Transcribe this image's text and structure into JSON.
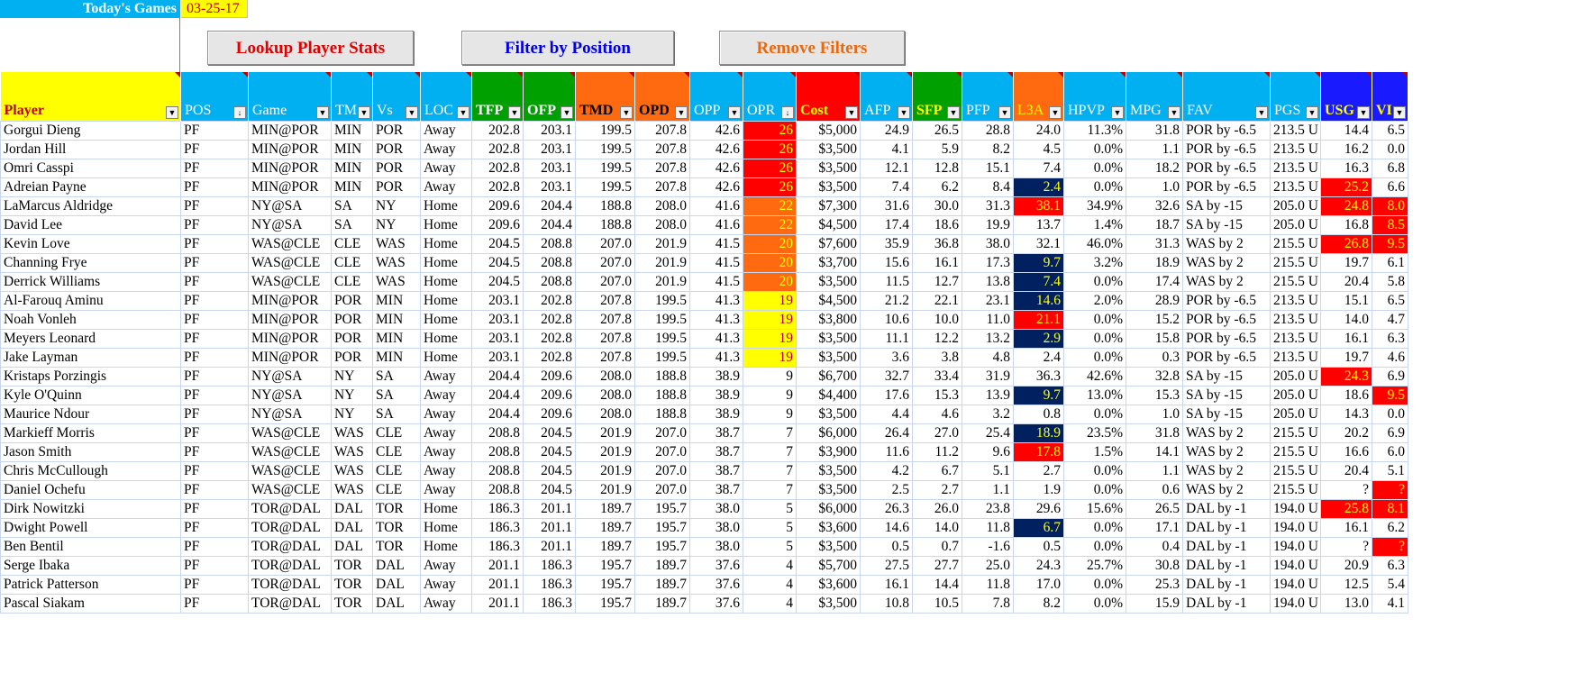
{
  "header": {
    "title": "Today's Games",
    "date": "03-25-17"
  },
  "buttons": [
    {
      "label": "Lookup Player Stats",
      "color": "#e00000"
    },
    {
      "label": "Filter by Position",
      "color": "#0000e0"
    },
    {
      "label": "Remove Filters",
      "color": "#e86a10"
    }
  ],
  "colors": {
    "orange": "#ff6a10",
    "yellow": "#ffff00",
    "navy": "#002060",
    "red": "#ff0000",
    "header_blue": "#00b0f0",
    "header_green": "#00a000"
  },
  "columns": [
    {
      "key": "player",
      "label": "Player",
      "bg": "#ffff00",
      "fg": "#c00000",
      "bold": true,
      "filter": "dropdown"
    },
    {
      "key": "pos",
      "label": "POS",
      "bg": "#00b0f0",
      "fg": "#ffffff",
      "filter": "sorted"
    },
    {
      "key": "game",
      "label": "Game",
      "bg": "#00b0f0",
      "fg": "#ffffff",
      "filter": "dropdown"
    },
    {
      "key": "tm",
      "label": "TM",
      "bg": "#00b0f0",
      "fg": "#ffffff",
      "filter": "dropdown"
    },
    {
      "key": "vs",
      "label": "Vs",
      "bg": "#00b0f0",
      "fg": "#ffffff",
      "filter": "dropdown"
    },
    {
      "key": "loc",
      "label": "LOC",
      "bg": "#00b0f0",
      "fg": "#ffffff",
      "filter": "dropdown"
    },
    {
      "key": "tfp",
      "label": "TFP",
      "bg": "#00a000",
      "fg": "#ffffff",
      "bold": true,
      "filter": "dropdown"
    },
    {
      "key": "ofp",
      "label": "OFP",
      "bg": "#00a000",
      "fg": "#ffffff",
      "bold": true,
      "filter": "dropdown"
    },
    {
      "key": "tmd",
      "label": "TMD",
      "bg": "#ff6a10",
      "fg": "#000000",
      "bold": true,
      "filter": "dropdown"
    },
    {
      "key": "opd",
      "label": "OPD",
      "bg": "#ff6a10",
      "fg": "#000000",
      "bold": true,
      "filter": "dropdown"
    },
    {
      "key": "opp",
      "label": "OPP",
      "bg": "#00b0f0",
      "fg": "#ffffff",
      "filter": "dropdown"
    },
    {
      "key": "opr",
      "label": "OPR",
      "bg": "#00b0f0",
      "fg": "#ffffff",
      "filter": "sorted"
    },
    {
      "key": "cost",
      "label": "Cost",
      "bg": "#ff0000",
      "fg": "#ffff00",
      "bold": true,
      "filter": "dropdown"
    },
    {
      "key": "afp",
      "label": "AFP",
      "bg": "#00b0f0",
      "fg": "#ffffff",
      "filter": "dropdown"
    },
    {
      "key": "sfp",
      "label": "SFP",
      "bg": "#00a000",
      "fg": "#ffff00",
      "bold": true,
      "filter": "dropdown"
    },
    {
      "key": "pfp",
      "label": "PFP",
      "bg": "#00b0f0",
      "fg": "#ffffff",
      "filter": "dropdown"
    },
    {
      "key": "l3a",
      "label": "L3A",
      "bg": "#ff6a10",
      "fg": "#ffff00",
      "filter": "dropdown"
    },
    {
      "key": "hpvp",
      "label": "HPVP",
      "bg": "#00b0f0",
      "fg": "#ffffff",
      "filter": "dropdown"
    },
    {
      "key": "mpg",
      "label": "MPG",
      "bg": "#00b0f0",
      "fg": "#ffffff",
      "filter": "dropdown"
    },
    {
      "key": "fav",
      "label": "FAV",
      "bg": "#00b0f0",
      "fg": "#ffffff",
      "filter": "dropdown"
    },
    {
      "key": "pgs",
      "label": "PGS",
      "bg": "#00b0f0",
      "fg": "#ffffff",
      "filter": "dropdown"
    },
    {
      "key": "usg",
      "label": "USG",
      "bg": "#1a1aff",
      "fg": "#ffff00",
      "bold": true,
      "filter": "dropdown"
    },
    {
      "key": "vi",
      "label": "VI",
      "bg": "#1a1aff",
      "fg": "#ffff00",
      "bold": true,
      "filter": "dropdown"
    }
  ],
  "rows": [
    [
      "Gorgui Dieng",
      "PF",
      "MIN@POR",
      "MIN",
      "POR",
      "Away",
      "202.8",
      "203.1",
      "199.5",
      "207.8",
      "42.6",
      "26",
      "$5,000",
      "24.9",
      "26.5",
      "28.8",
      "24.0",
      "11.3%",
      "31.8",
      "POR by -6.5",
      "213.5 U",
      "14.4",
      "6.5"
    ],
    [
      "Jordan Hill",
      "PF",
      "MIN@POR",
      "MIN",
      "POR",
      "Away",
      "202.8",
      "203.1",
      "199.5",
      "207.8",
      "42.6",
      "26",
      "$3,500",
      "4.1",
      "5.9",
      "8.2",
      "4.5",
      "0.0%",
      "1.1",
      "POR by -6.5",
      "213.5 U",
      "16.2",
      "0.0"
    ],
    [
      "Omri Casspi",
      "PF",
      "MIN@POR",
      "MIN",
      "POR",
      "Away",
      "202.8",
      "203.1",
      "199.5",
      "207.8",
      "42.6",
      "26",
      "$3,500",
      "12.1",
      "12.8",
      "15.1",
      "7.4",
      "0.0%",
      "18.2",
      "POR by -6.5",
      "213.5 U",
      "16.3",
      "6.8"
    ],
    [
      "Adreian Payne",
      "PF",
      "MIN@POR",
      "MIN",
      "POR",
      "Away",
      "202.8",
      "203.1",
      "199.5",
      "207.8",
      "42.6",
      "26",
      "$3,500",
      "7.4",
      "6.2",
      "8.4",
      "2.4",
      "0.0%",
      "1.0",
      "POR by -6.5",
      "213.5 U",
      "25.2",
      "6.6"
    ],
    [
      "LaMarcus Aldridge",
      "PF",
      "NY@SA",
      "SA",
      "NY",
      "Home",
      "209.6",
      "204.4",
      "188.8",
      "208.0",
      "41.6",
      "22",
      "$7,300",
      "31.6",
      "30.0",
      "31.3",
      "38.1",
      "34.9%",
      "32.6",
      "SA by -15",
      "205.0 U",
      "24.8",
      "8.0"
    ],
    [
      "David Lee",
      "PF",
      "NY@SA",
      "SA",
      "NY",
      "Home",
      "209.6",
      "204.4",
      "188.8",
      "208.0",
      "41.6",
      "22",
      "$4,500",
      "17.4",
      "18.6",
      "19.9",
      "13.7",
      "1.4%",
      "18.7",
      "SA by -15",
      "205.0 U",
      "16.8",
      "8.5"
    ],
    [
      "Kevin Love",
      "PF",
      "WAS@CLE",
      "CLE",
      "WAS",
      "Home",
      "204.5",
      "208.8",
      "207.0",
      "201.9",
      "41.5",
      "20",
      "$7,600",
      "35.9",
      "36.8",
      "38.0",
      "32.1",
      "46.0%",
      "31.3",
      "WAS by 2",
      "215.5 U",
      "26.8",
      "9.5"
    ],
    [
      "Channing Frye",
      "PF",
      "WAS@CLE",
      "CLE",
      "WAS",
      "Home",
      "204.5",
      "208.8",
      "207.0",
      "201.9",
      "41.5",
      "20",
      "$3,700",
      "15.6",
      "16.1",
      "17.3",
      "9.7",
      "3.2%",
      "18.9",
      "WAS by 2",
      "215.5 U",
      "19.7",
      "6.1"
    ],
    [
      "Derrick Williams",
      "PF",
      "WAS@CLE",
      "CLE",
      "WAS",
      "Home",
      "204.5",
      "208.8",
      "207.0",
      "201.9",
      "41.5",
      "20",
      "$3,500",
      "11.5",
      "12.7",
      "13.8",
      "7.4",
      "0.0%",
      "17.4",
      "WAS by 2",
      "215.5 U",
      "20.4",
      "5.8"
    ],
    [
      "Al-Farouq Aminu",
      "PF",
      "MIN@POR",
      "POR",
      "MIN",
      "Home",
      "203.1",
      "202.8",
      "207.8",
      "199.5",
      "41.3",
      "19",
      "$4,500",
      "21.2",
      "22.1",
      "23.1",
      "14.6",
      "2.0%",
      "28.9",
      "POR by -6.5",
      "213.5 U",
      "15.1",
      "6.5"
    ],
    [
      "Noah Vonleh",
      "PF",
      "MIN@POR",
      "POR",
      "MIN",
      "Home",
      "203.1",
      "202.8",
      "207.8",
      "199.5",
      "41.3",
      "19",
      "$3,800",
      "10.6",
      "10.0",
      "11.0",
      "21.1",
      "0.0%",
      "15.2",
      "POR by -6.5",
      "213.5 U",
      "14.0",
      "4.7"
    ],
    [
      "Meyers Leonard",
      "PF",
      "MIN@POR",
      "POR",
      "MIN",
      "Home",
      "203.1",
      "202.8",
      "207.8",
      "199.5",
      "41.3",
      "19",
      "$3,500",
      "11.1",
      "12.2",
      "13.2",
      "2.9",
      "0.0%",
      "15.8",
      "POR by -6.5",
      "213.5 U",
      "16.1",
      "6.3"
    ],
    [
      "Jake Layman",
      "PF",
      "MIN@POR",
      "POR",
      "MIN",
      "Home",
      "203.1",
      "202.8",
      "207.8",
      "199.5",
      "41.3",
      "19",
      "$3,500",
      "3.6",
      "3.8",
      "4.8",
      "2.4",
      "0.0%",
      "0.3",
      "POR by -6.5",
      "213.5 U",
      "19.7",
      "4.6"
    ],
    [
      "Kristaps Porzingis",
      "PF",
      "NY@SA",
      "NY",
      "SA",
      "Away",
      "204.4",
      "209.6",
      "208.0",
      "188.8",
      "38.9",
      "9",
      "$6,700",
      "32.7",
      "33.4",
      "31.9",
      "36.3",
      "42.6%",
      "32.8",
      "SA by -15",
      "205.0 U",
      "24.3",
      "6.9"
    ],
    [
      "Kyle O'Quinn",
      "PF",
      "NY@SA",
      "NY",
      "SA",
      "Away",
      "204.4",
      "209.6",
      "208.0",
      "188.8",
      "38.9",
      "9",
      "$4,400",
      "17.6",
      "15.3",
      "13.9",
      "9.7",
      "13.0%",
      "15.3",
      "SA by -15",
      "205.0 U",
      "18.6",
      "9.5"
    ],
    [
      "Maurice Ndour",
      "PF",
      "NY@SA",
      "NY",
      "SA",
      "Away",
      "204.4",
      "209.6",
      "208.0",
      "188.8",
      "38.9",
      "9",
      "$3,500",
      "4.4",
      "4.6",
      "3.2",
      "0.8",
      "0.0%",
      "1.0",
      "SA by -15",
      "205.0 U",
      "14.3",
      "0.0"
    ],
    [
      "Markieff Morris",
      "PF",
      "WAS@CLE",
      "WAS",
      "CLE",
      "Away",
      "208.8",
      "204.5",
      "201.9",
      "207.0",
      "38.7",
      "7",
      "$6,000",
      "26.4",
      "27.0",
      "25.4",
      "18.9",
      "23.5%",
      "31.8",
      "WAS by 2",
      "215.5 U",
      "20.2",
      "6.9"
    ],
    [
      "Jason Smith",
      "PF",
      "WAS@CLE",
      "WAS",
      "CLE",
      "Away",
      "208.8",
      "204.5",
      "201.9",
      "207.0",
      "38.7",
      "7",
      "$3,900",
      "11.6",
      "11.2",
      "9.6",
      "17.8",
      "1.5%",
      "14.1",
      "WAS by 2",
      "215.5 U",
      "16.6",
      "6.0"
    ],
    [
      "Chris McCullough",
      "PF",
      "WAS@CLE",
      "WAS",
      "CLE",
      "Away",
      "208.8",
      "204.5",
      "201.9",
      "207.0",
      "38.7",
      "7",
      "$3,500",
      "4.2",
      "6.7",
      "5.1",
      "2.7",
      "0.0%",
      "1.1",
      "WAS by 2",
      "215.5 U",
      "20.4",
      "5.1"
    ],
    [
      "Daniel Ochefu",
      "PF",
      "WAS@CLE",
      "WAS",
      "CLE",
      "Away",
      "208.8",
      "204.5",
      "201.9",
      "207.0",
      "38.7",
      "7",
      "$3,500",
      "2.5",
      "2.7",
      "1.1",
      "1.9",
      "0.0%",
      "0.6",
      "WAS by 2",
      "215.5 U",
      "?",
      "?"
    ],
    [
      "Dirk Nowitzki",
      "PF",
      "TOR@DAL",
      "DAL",
      "TOR",
      "Home",
      "186.3",
      "201.1",
      "189.7",
      "195.7",
      "38.0",
      "5",
      "$6,000",
      "26.3",
      "26.0",
      "23.8",
      "29.6",
      "15.6%",
      "26.5",
      "DAL by -1",
      "194.0 U",
      "25.8",
      "8.1"
    ],
    [
      "Dwight Powell",
      "PF",
      "TOR@DAL",
      "DAL",
      "TOR",
      "Home",
      "186.3",
      "201.1",
      "189.7",
      "195.7",
      "38.0",
      "5",
      "$3,600",
      "14.6",
      "14.0",
      "11.8",
      "6.7",
      "0.0%",
      "17.1",
      "DAL by -1",
      "194.0 U",
      "16.1",
      "6.2"
    ],
    [
      "Ben Bentil",
      "PF",
      "TOR@DAL",
      "DAL",
      "TOR",
      "Home",
      "186.3",
      "201.1",
      "189.7",
      "195.7",
      "38.0",
      "5",
      "$3,500",
      "0.5",
      "0.7",
      "-1.6",
      "0.5",
      "0.0%",
      "0.4",
      "DAL by -1",
      "194.0 U",
      "?",
      "?"
    ],
    [
      "Serge Ibaka",
      "PF",
      "TOR@DAL",
      "TOR",
      "DAL",
      "Away",
      "201.1",
      "186.3",
      "195.7",
      "189.7",
      "37.6",
      "4",
      "$5,700",
      "27.5",
      "27.7",
      "25.0",
      "24.3",
      "25.7%",
      "30.8",
      "DAL by -1",
      "194.0 U",
      "20.9",
      "6.3"
    ],
    [
      "Patrick Patterson",
      "PF",
      "TOR@DAL",
      "TOR",
      "DAL",
      "Away",
      "201.1",
      "186.3",
      "195.7",
      "189.7",
      "37.6",
      "4",
      "$3,600",
      "16.1",
      "14.4",
      "11.8",
      "17.0",
      "0.0%",
      "25.3",
      "DAL by -1",
      "194.0 U",
      "12.5",
      "5.4"
    ],
    [
      "Pascal Siakam",
      "PF",
      "TOR@DAL",
      "TOR",
      "DAL",
      "Away",
      "201.1",
      "186.3",
      "195.7",
      "189.7",
      "37.6",
      "4",
      "$3,500",
      "10.8",
      "10.5",
      "7.8",
      "8.2",
      "0.0%",
      "15.9",
      "DAL by -1",
      "194.0 U",
      "13.0",
      "4.1"
    ]
  ],
  "highlights": {
    "opr": {
      "26": "red",
      "22": "orange",
      "20": "orange",
      "19": "yellow"
    },
    "l3a": {
      "3": "navy",
      "4": "red",
      "7": "navy",
      "8": "navy",
      "9": "navy",
      "10": "red",
      "11": "navy",
      "14": "navy",
      "16": "navy",
      "17": "red",
      "21": "navy"
    },
    "usg": {
      "3": "red",
      "4": "red",
      "6": "red",
      "13": "red",
      "20": "red"
    },
    "vi": {
      "4": "red",
      "5": "red",
      "6": "red",
      "14": "red",
      "19": "red",
      "20": "red",
      "22": "red"
    }
  }
}
